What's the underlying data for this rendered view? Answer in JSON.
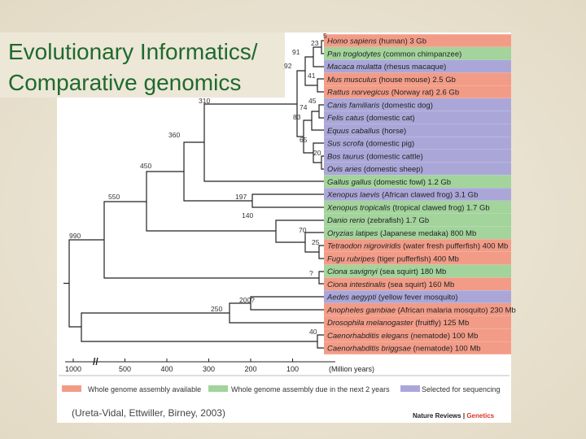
{
  "title_lines": [
    "Evolutionary Informatics/",
    "Comparative genomics"
  ],
  "species": [
    {
      "name": "Homo sapiens",
      "detail": "(human) 3 Gb",
      "color": "#f29c88"
    },
    {
      "name": "Pan troglodytes",
      "detail": "(common chimpanzee)",
      "color": "#a2d49c"
    },
    {
      "name": "Macaca mulatta",
      "detail": "(rhesus macaque)",
      "color": "#aaa7d8"
    },
    {
      "name": "Mus musculus",
      "detail": "(house mouse) 2.5 Gb",
      "color": "#f29c88"
    },
    {
      "name": "Rattus norvegicus",
      "detail": "(Norway rat) 2.6 Gb",
      "color": "#f29c88"
    },
    {
      "name": "Canis familiaris",
      "detail": "(domestic dog)",
      "color": "#aaa7d8"
    },
    {
      "name": "Felis catus",
      "detail": "(domestic cat)",
      "color": "#aaa7d8"
    },
    {
      "name": "Equus caballus",
      "detail": "(horse)",
      "color": "#aaa7d8"
    },
    {
      "name": "Sus scrofa",
      "detail": "(domestic pig)",
      "color": "#aaa7d8"
    },
    {
      "name": "Bos taurus",
      "detail": "(domestic cattle)",
      "color": "#aaa7d8"
    },
    {
      "name": "Ovis aries",
      "detail": "(domestic sheep)",
      "color": "#aaa7d8"
    },
    {
      "name": "Gallus gallus",
      "detail": "(domestic fowl) 1.2 Gb",
      "color": "#a2d49c"
    },
    {
      "name": "Xenopus laevis",
      "detail": "(African clawed frog) 3.1 Gb",
      "color": "#aaa7d8"
    },
    {
      "name": "Xenopus tropicalis",
      "detail": "(tropical clawed frog) 1.7 Gb",
      "color": "#a2d49c"
    },
    {
      "name": "Danio rerio",
      "detail": "(zebrafish) 1.7 Gb",
      "color": "#a2d49c"
    },
    {
      "name": "Oryzias latipes",
      "detail": "(Japanese medaka) 800 Mb",
      "color": "#a2d49c"
    },
    {
      "name": "Tetraodon nigroviridis",
      "detail": "(water fresh pufferfish) 400 Mb",
      "color": "#f29c88"
    },
    {
      "name": "Fugu rubripes",
      "detail": "(tiger pufferfish) 400 Mb",
      "color": "#f29c88"
    },
    {
      "name": "Ciona savignyi",
      "detail": "(sea squirt) 180 Mb",
      "color": "#a2d49c"
    },
    {
      "name": "Ciona intestinalis",
      "detail": "(sea squirt) 160 Mb",
      "color": "#f29c88"
    },
    {
      "name": "Aedes aegypti",
      "detail": "(yellow fever mosquito)",
      "color": "#aaa7d8"
    },
    {
      "name": "Anopheles gambiae",
      "detail": "(African malaria mosquito) 230 Mb",
      "color": "#f29c88"
    },
    {
      "name": "Drosophila melanogaster",
      "detail": "(fruitfly) 125 Mb",
      "color": "#f29c88"
    },
    {
      "name": "Caenorhabditis elegans",
      "detail": "(nematode) 100 Mb",
      "color": "#f29c88"
    },
    {
      "name": "Caenorhabditis briggsae",
      "detail": "(nematode) 100 Mb",
      "color": "#f29c88"
    }
  ],
  "node_labels": [
    "5",
    "23",
    "91",
    "92",
    "41",
    "310",
    "45",
    "74",
    "83",
    "360",
    "65",
    "20",
    "450",
    "550",
    "197",
    "140",
    "990",
    "70",
    "25",
    "?",
    "200?",
    "250",
    "40"
  ],
  "axis": {
    "ticks": [
      1000,
      500,
      400,
      300,
      200,
      100
    ],
    "label": "(Million years)"
  },
  "legend": [
    {
      "label": "Whole genome assembly available",
      "color": "#f29c88"
    },
    {
      "label": "Whole genome assembly due in the next 2 years",
      "color": "#a2d49c"
    },
    {
      "label": "Selected for sequencing",
      "color": "#aaa7d8"
    }
  ],
  "citation": "(Ureta-Vidal, Ettwiller, Birney, 2003)",
  "journal": {
    "name": "Nature Reviews",
    "sep": "|",
    "section": "Genetics"
  }
}
